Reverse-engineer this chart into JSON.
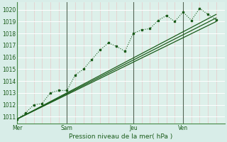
{
  "background_color": "#d8ede8",
  "plot_bg_color": "#ddf0ea",
  "grid_h_color": "#ffffff",
  "grid_v_color": "#e8c8c8",
  "vline_color": "#556655",
  "line_color": "#1a5c1a",
  "title": "Pression niveau de la mer( hPa )",
  "ylim": [
    1010.4,
    1020.6
  ],
  "yticks": [
    1011,
    1012,
    1013,
    1014,
    1015,
    1016,
    1017,
    1018,
    1019,
    1020
  ],
  "day_labels": [
    "Mer",
    "Sam",
    "Jeu",
    "Ven"
  ],
  "day_positions": [
    0,
    3.0,
    7.0,
    10.0
  ],
  "xlim": [
    0,
    12.5
  ],
  "series1_x": [
    0,
    0.5,
    1.0,
    1.5,
    2.0,
    2.5,
    3.0,
    3.5,
    4.0,
    4.5,
    5.0,
    5.5,
    6.0,
    6.5,
    7.0,
    7.5,
    8.0,
    8.5,
    9.0,
    9.5,
    10.0,
    10.5,
    11.0,
    11.5,
    12.0
  ],
  "series1_y": [
    1010.8,
    1011.3,
    1012.0,
    1012.1,
    1013.0,
    1013.2,
    1013.2,
    1014.5,
    1015.0,
    1015.8,
    1016.6,
    1017.2,
    1016.9,
    1016.5,
    1018.0,
    1018.3,
    1018.4,
    1019.1,
    1019.5,
    1019.0,
    1019.8,
    1019.1,
    1020.1,
    1019.6,
    1019.15
  ],
  "series2_x": [
    0,
    12.0
  ],
  "series2_y": [
    1010.8,
    1019.0
  ],
  "series3_x": [
    0,
    12.0
  ],
  "series3_y": [
    1010.8,
    1019.3
  ],
  "series4_x": [
    0,
    12.0
  ],
  "series4_y": [
    1010.8,
    1019.6
  ]
}
